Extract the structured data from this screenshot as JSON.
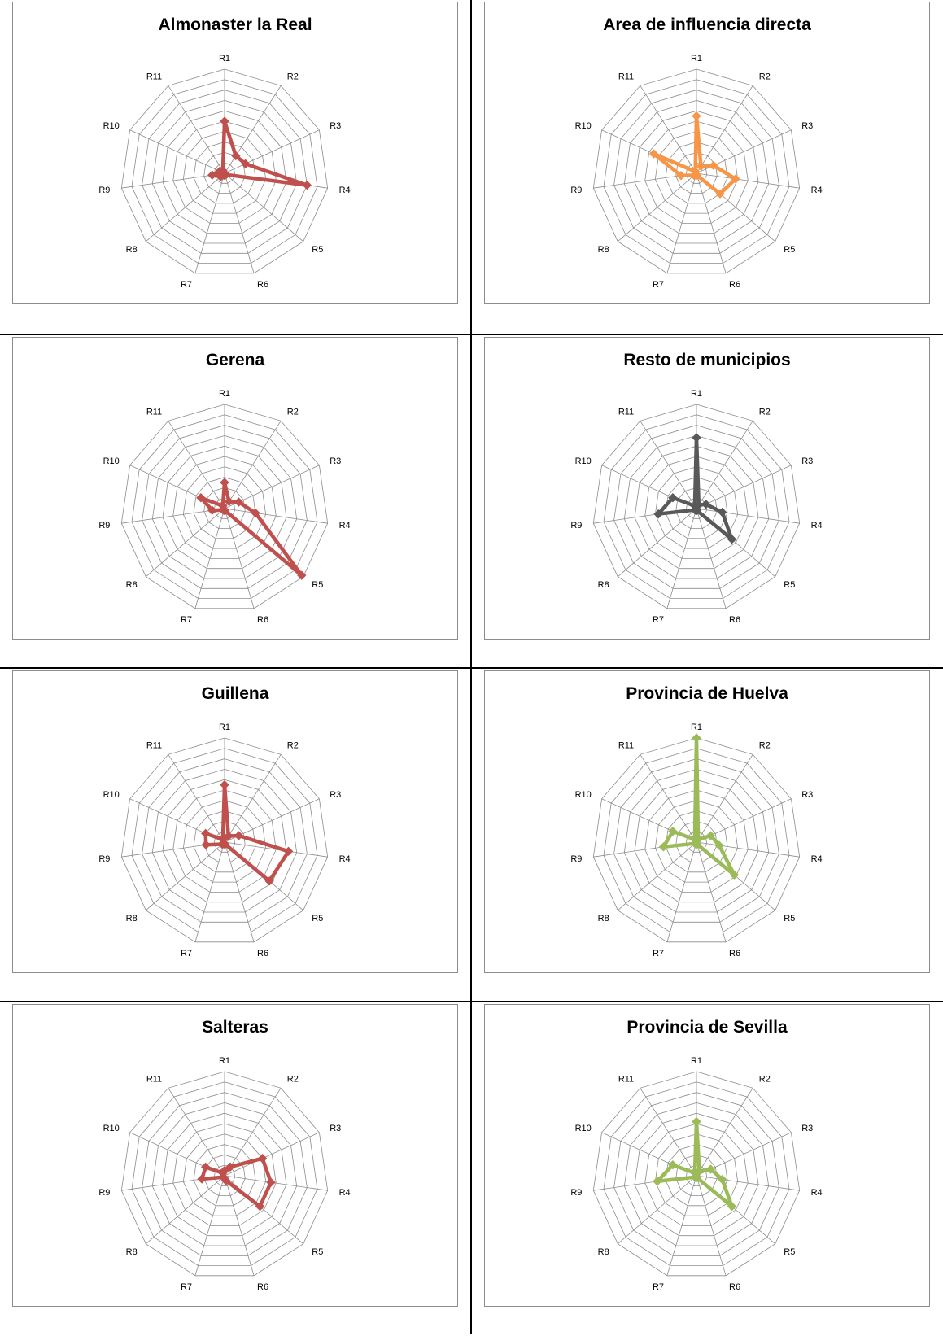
{
  "chart_data": [
    {
      "type": "radar",
      "title": "Almonaster la Real",
      "categories": [
        "R1",
        "R2",
        "R3",
        "R4",
        "R5",
        "R6",
        "R7",
        "R8",
        "R9",
        "R10",
        "R11"
      ],
      "values": [
        50,
        20,
        22,
        80,
        2,
        2,
        2,
        5,
        12,
        5,
        3
      ],
      "ylim": [
        0,
        100
      ],
      "color": "#c0504d"
    },
    {
      "type": "radar",
      "title": "Area de influencia directa",
      "categories": [
        "R1",
        "R2",
        "R3",
        "R4",
        "R5",
        "R6",
        "R7",
        "R8",
        "R9",
        "R10",
        "R11"
      ],
      "values": [
        55,
        8,
        18,
        38,
        30,
        2,
        2,
        3,
        15,
        45,
        2
      ],
      "ylim": [
        0,
        100
      ],
      "color": "#f79646"
    },
    {
      "type": "radar",
      "title": "Gerena",
      "categories": [
        "R1",
        "R2",
        "R3",
        "R4",
        "R5",
        "R6",
        "R7",
        "R8",
        "R9",
        "R10",
        "R11"
      ],
      "values": [
        25,
        8,
        15,
        30,
        98,
        2,
        2,
        2,
        12,
        25,
        3
      ],
      "ylim": [
        0,
        100
      ],
      "color": "#c0504d"
    },
    {
      "type": "radar",
      "title": "Resto de municipios",
      "categories": [
        "R1",
        "R2",
        "R3",
        "R4",
        "R5",
        "R6",
        "R7",
        "R8",
        "R9",
        "R10",
        "R11"
      ],
      "values": [
        68,
        4,
        10,
        25,
        45,
        2,
        2,
        2,
        37,
        25,
        3
      ],
      "ylim": [
        0,
        100
      ],
      "color": "#595959"
    },
    {
      "type": "radar",
      "title": "Guillena",
      "categories": [
        "R1",
        "R2",
        "R3",
        "R4",
        "R5",
        "R6",
        "R7",
        "R8",
        "R9",
        "R10",
        "R11"
      ],
      "values": [
        55,
        7,
        15,
        62,
        57,
        2,
        2,
        3,
        18,
        20,
        3
      ],
      "ylim": [
        0,
        100
      ],
      "color": "#c0504d"
    },
    {
      "type": "radar",
      "title": "Provincia de Huelva",
      "categories": [
        "R1",
        "R2",
        "R3",
        "R4",
        "R5",
        "R6",
        "R7",
        "R8",
        "R9",
        "R10",
        "R11"
      ],
      "values": [
        100,
        3,
        15,
        22,
        48,
        2,
        2,
        2,
        32,
        25,
        3
      ],
      "ylim": [
        0,
        100
      ],
      "color": "#9bbb59"
    },
    {
      "type": "radar",
      "title": "Salteras",
      "categories": [
        "R1",
        "R2",
        "R3",
        "R4",
        "R5",
        "R6",
        "R7",
        "R8",
        "R9",
        "R10",
        "R11"
      ],
      "values": [
        5,
        10,
        40,
        45,
        45,
        5,
        2,
        2,
        22,
        20,
        3
      ],
      "ylim": [
        0,
        100
      ],
      "color": "#c0504d"
    },
    {
      "type": "radar",
      "title": "Provincia de Sevilla",
      "categories": [
        "R1",
        "R2",
        "R3",
        "R4",
        "R5",
        "R6",
        "R7",
        "R8",
        "R9",
        "R10",
        "R11"
      ],
      "values": [
        52,
        5,
        15,
        25,
        45,
        2,
        2,
        2,
        38,
        25,
        3
      ],
      "ylim": [
        0,
        100
      ],
      "color": "#9bbb59"
    }
  ]
}
